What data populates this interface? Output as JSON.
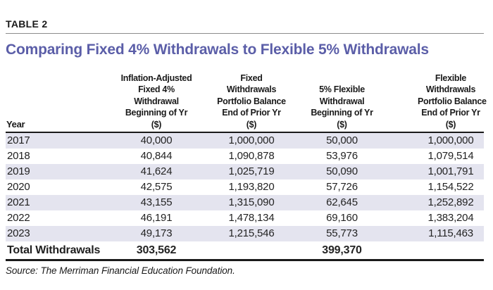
{
  "table_label": "TABLE 2",
  "title": "Comparing Fixed 4% Withdrawals to Flexible 5% Withdrawals",
  "header": {
    "year": "Year",
    "col_fixed_withdrawal": [
      "Inflation-Adjusted",
      "Fixed 4%",
      "Withdrawal",
      "Beginning of Yr",
      "($)"
    ],
    "col_fixed_balance": [
      "Fixed",
      "Withdrawals",
      "Portfolio Balance",
      "End of Prior Yr",
      "($)"
    ],
    "col_flex_withdrawal": [
      "5% Flexible",
      "Withdrawal",
      "Beginning of Yr",
      "($)"
    ],
    "col_flex_balance": [
      "Flexible",
      "Withdrawals",
      "Portfolio Balance",
      "End of Prior Yr",
      "($)"
    ]
  },
  "rows": [
    {
      "year": "2017",
      "fixed_withdrawal": "40,000",
      "fixed_balance": "1,000,000",
      "flex_withdrawal": "50,000",
      "flex_balance": "1,000,000"
    },
    {
      "year": "2018",
      "fixed_withdrawal": "40,844",
      "fixed_balance": "1,090,878",
      "flex_withdrawal": "53,976",
      "flex_balance": "1,079,514"
    },
    {
      "year": "2019",
      "fixed_withdrawal": "41,624",
      "fixed_balance": "1,025,719",
      "flex_withdrawal": "50,090",
      "flex_balance": "1,001,791"
    },
    {
      "year": "2020",
      "fixed_withdrawal": "42,575",
      "fixed_balance": "1,193,820",
      "flex_withdrawal": "57,726",
      "flex_balance": "1,154,522"
    },
    {
      "year": "2021",
      "fixed_withdrawal": "43,155",
      "fixed_balance": "1,315,090",
      "flex_withdrawal": "62,645",
      "flex_balance": "1,252,892"
    },
    {
      "year": "2022",
      "fixed_withdrawal": "46,191",
      "fixed_balance": "1,478,134",
      "flex_withdrawal": "69,160",
      "flex_balance": "1,383,204"
    },
    {
      "year": "2023",
      "fixed_withdrawal": "49,173",
      "fixed_balance": "1,215,546",
      "flex_withdrawal": "55,773",
      "flex_balance": "1,115,463"
    }
  ],
  "totals": {
    "label": "Total Withdrawals",
    "fixed_withdrawal_total": "303,562",
    "flex_withdrawal_total": "399,370"
  },
  "source": "Source: The Merriman Financial Education Foundation.",
  "colors": {
    "title_accent": "#5b5ea8",
    "row_stripe": "#e4e4ef",
    "rule_dark": "#1a1a1a",
    "rule_gray": "#8c8c8c"
  }
}
